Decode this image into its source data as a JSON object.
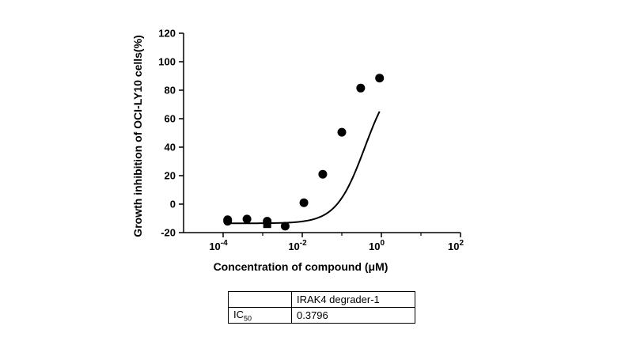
{
  "chart_data": {
    "type": "scatter",
    "xlabel": "Concentration of compound (μM)",
    "ylabel": "Growth inhibition of OCI-LY10 cells(%)",
    "x_scale": "log",
    "xlim": [
      1e-05,
      100
    ],
    "ylim": [
      -20,
      120
    ],
    "y_ticks": [
      "-20",
      "0",
      "20",
      "40",
      "60",
      "80",
      "100",
      "120"
    ],
    "x_ticks": [
      {
        "base": "10",
        "exp": "-4",
        "value": 0.0001
      },
      {
        "base": "10",
        "exp": "-2",
        "value": 0.01
      },
      {
        "base": "10",
        "exp": "0",
        "value": 1
      },
      {
        "base": "10",
        "exp": "2",
        "value": 100
      }
    ],
    "series": [
      {
        "points": [
          {
            "x": 0.00013,
            "y": -11,
            "marker": "circle"
          },
          {
            "x": 0.00013,
            "y": -12,
            "marker": "circle"
          },
          {
            "x": 0.0004,
            "y": -10.5,
            "marker": "circle"
          },
          {
            "x": 0.0013,
            "y": -12,
            "marker": "circle"
          },
          {
            "x": 0.0013,
            "y": -14,
            "marker": "square"
          },
          {
            "x": 0.0037,
            "y": -15.5,
            "marker": "circle"
          },
          {
            "x": 0.011,
            "y": 1,
            "marker": "circle"
          },
          {
            "x": 0.033,
            "y": 21,
            "marker": "circle"
          },
          {
            "x": 0.1,
            "y": 50.5,
            "marker": "circle"
          },
          {
            "x": 0.3,
            "y": 81.5,
            "marker": "circle"
          },
          {
            "x": 0.9,
            "y": 88.5,
            "marker": "circle"
          }
        ],
        "fit": {
          "model": "sigmoid",
          "bottom": -13.5,
          "top": 93,
          "log_ic50": -0.42,
          "hill": 1.2,
          "x_range": [
            0.00013,
            0.9
          ]
        }
      }
    ]
  },
  "table": {
    "header": [
      "",
      "IRAK4 degrader-1"
    ],
    "row": {
      "label_main": "IC",
      "label_sub": "50",
      "value": "0.3796"
    }
  }
}
